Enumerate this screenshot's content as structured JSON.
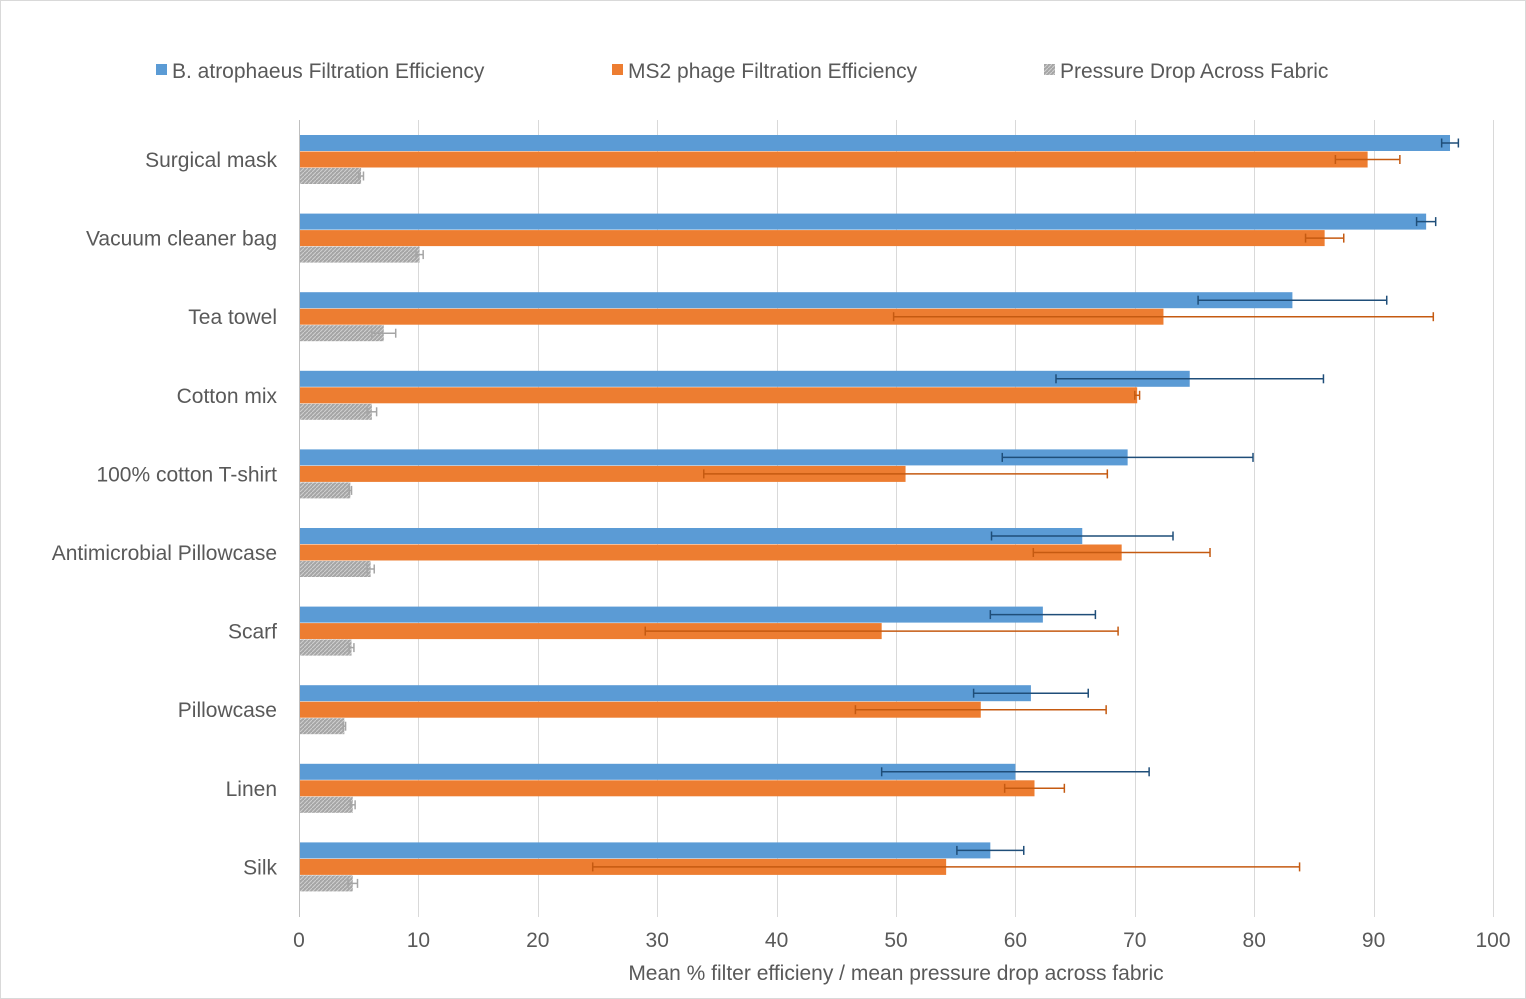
{
  "chart_data": {
    "type": "bar",
    "orientation": "horizontal",
    "title": "",
    "xlabel": "Mean % filter efficieny / mean pressure drop across fabric",
    "ylabel": "",
    "xlim": [
      0,
      100
    ],
    "xticks": [
      0,
      10,
      20,
      30,
      40,
      50,
      60,
      70,
      80,
      90,
      100
    ],
    "grid": true,
    "legend_position": "top",
    "categories": [
      "Surgical mask",
      "Vacuum cleaner bag",
      "Tea towel",
      "Cotton mix",
      "100% cotton T-shirt",
      "Antimicrobial Pillowcase",
      "Scarf",
      "Pillowcase",
      "Linen",
      "Silk"
    ],
    "series": [
      {
        "name": "B. atrophaeus Filtration Efficiency",
        "color": "#5b9bd5",
        "error_color": "#1f4e79",
        "pattern": "solid",
        "values": [
          96.4,
          94.4,
          83.2,
          74.6,
          69.4,
          65.6,
          62.3,
          61.3,
          60.0,
          57.9
        ],
        "errors": [
          0.7,
          0.8,
          7.9,
          11.2,
          10.5,
          7.6,
          4.4,
          4.8,
          11.2,
          2.8
        ]
      },
      {
        "name": "MS2 phage Filtration Efficiency",
        "color": "#ed7d31",
        "error_color": "#c55a11",
        "pattern": "solid",
        "values": [
          89.5,
          85.9,
          72.4,
          70.2,
          50.8,
          68.9,
          48.8,
          57.1,
          61.6,
          54.2
        ],
        "errors": [
          2.7,
          1.6,
          22.6,
          0.2,
          16.9,
          7.4,
          19.8,
          10.5,
          2.5,
          29.6
        ]
      },
      {
        "name": "Pressure Drop Across Fabric",
        "color": "#a5a5a5",
        "error_color": "#a5a5a5",
        "pattern": "hatched",
        "values": [
          5.2,
          10.1,
          7.1,
          6.1,
          4.3,
          6.0,
          4.4,
          3.8,
          4.5,
          4.5
        ],
        "errors": [
          0.2,
          0.3,
          1.0,
          0.4,
          0.1,
          0.3,
          0.2,
          0.1,
          0.2,
          0.4
        ]
      }
    ]
  }
}
